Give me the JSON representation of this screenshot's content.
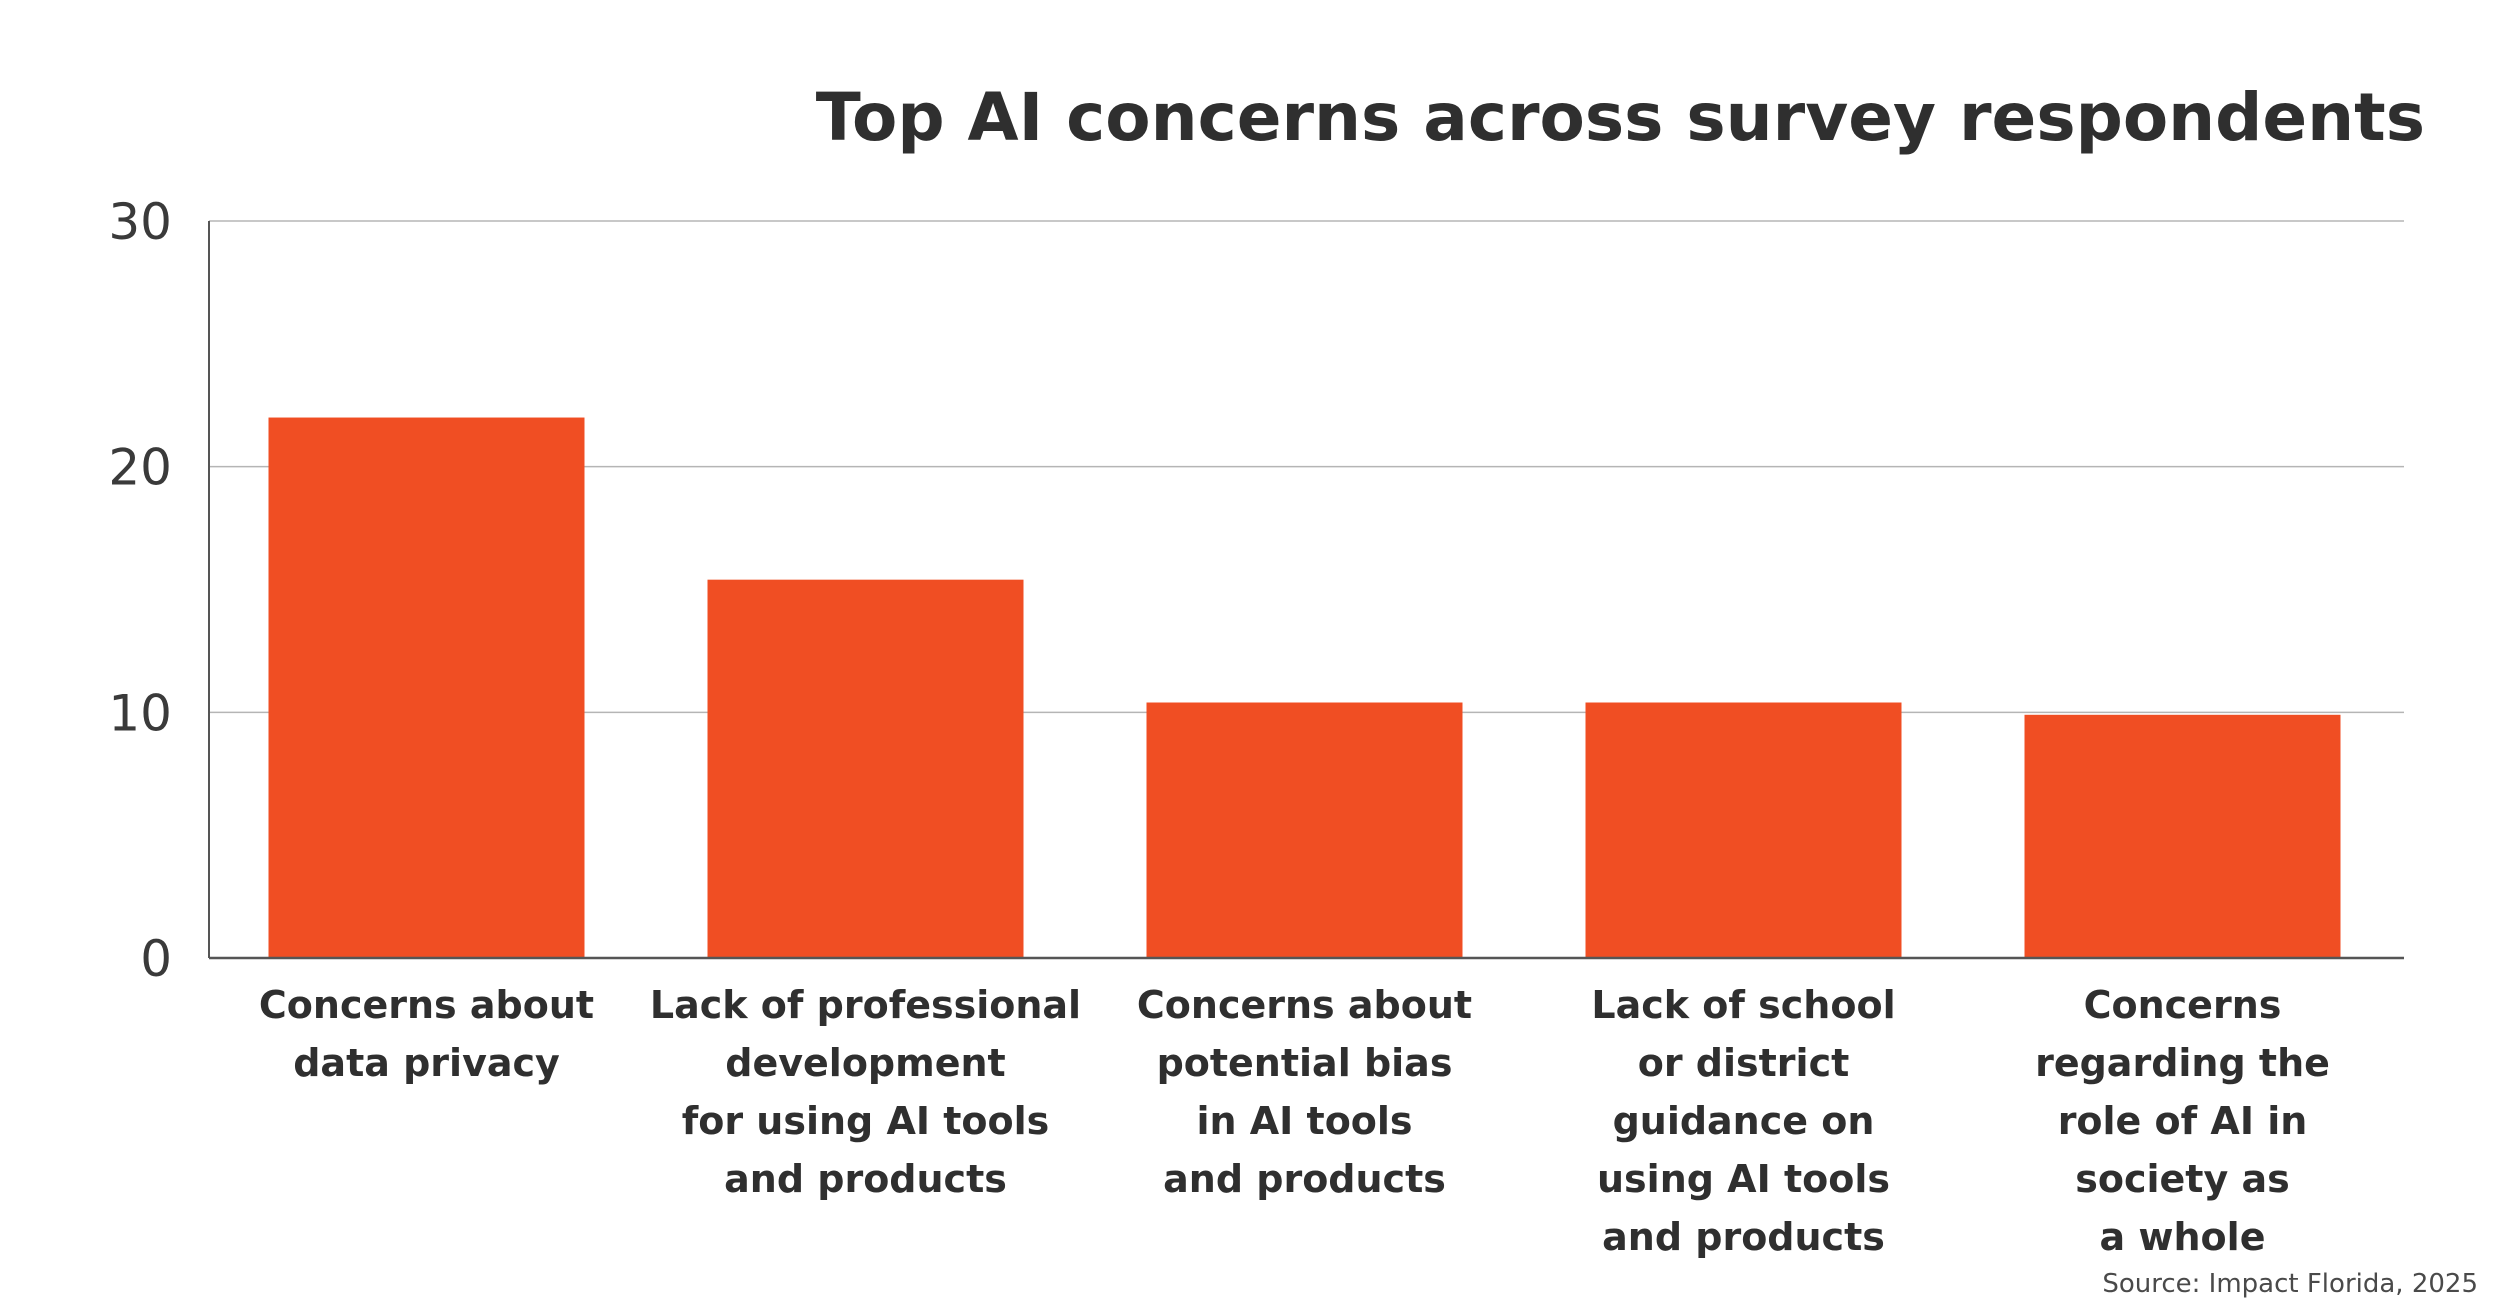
{
  "chart_data": {
    "type": "bar",
    "title": "Top AI concerns across survey respondents",
    "xlabel": "",
    "ylabel": "",
    "ylim": [
      0,
      30
    ],
    "yticks": [
      0,
      10,
      20,
      30
    ],
    "grid": true,
    "bar_color": "#f04e23",
    "categories": [
      [
        "Concerns about",
        "data privacy"
      ],
      [
        "Lack of professional",
        "development",
        "for using AI tools",
        "and products"
      ],
      [
        "Concerns about",
        "potential bias",
        "in AI tools",
        "and products"
      ],
      [
        "Lack of school",
        "or district",
        "guidance on",
        "using AI tools",
        "and products"
      ],
      [
        "Concerns",
        "regarding the",
        "role of AI in",
        "society as",
        "a whole"
      ]
    ],
    "values": [
      22,
      15.4,
      10.4,
      10.4,
      9.9
    ]
  },
  "source": "Source: Impact Florida, 2025"
}
